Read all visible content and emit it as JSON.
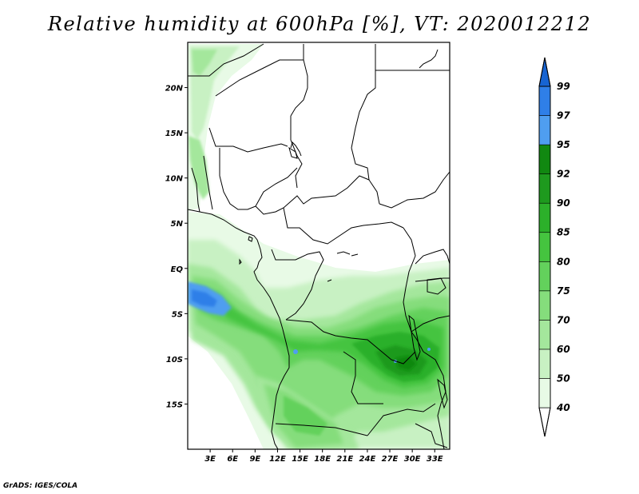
{
  "title": "Relative humidity at 600hPa [%], VT: 2020012212",
  "credit": "GrADS: IGES/COLA",
  "map": {
    "lon_range": [
      0,
      35
    ],
    "lat_range": [
      -20,
      25
    ],
    "lon_ticks": [
      {
        "value": 3,
        "label": "3E"
      },
      {
        "value": 6,
        "label": "6E"
      },
      {
        "value": 9,
        "label": "9E"
      },
      {
        "value": 12,
        "label": "12E"
      },
      {
        "value": 15,
        "label": "15E"
      },
      {
        "value": 18,
        "label": "18E"
      },
      {
        "value": 21,
        "label": "21E"
      },
      {
        "value": 24,
        "label": "24E"
      },
      {
        "value": 27,
        "label": "27E"
      },
      {
        "value": 30,
        "label": "30E"
      },
      {
        "value": 33,
        "label": "33E"
      }
    ],
    "lat_ticks": [
      {
        "value": 20,
        "label": "20N"
      },
      {
        "value": 15,
        "label": "15N"
      },
      {
        "value": 10,
        "label": "10N"
      },
      {
        "value": 5,
        "label": "5N"
      },
      {
        "value": 0,
        "label": "EQ"
      },
      {
        "value": -5,
        "label": "5S"
      },
      {
        "value": -10,
        "label": "10S"
      },
      {
        "value": -15,
        "label": "15S"
      }
    ]
  },
  "colorbar": {
    "levels": [
      "40",
      "50",
      "60",
      "70",
      "75",
      "80",
      "85",
      "90",
      "92",
      "95",
      "97",
      "99"
    ],
    "colors": [
      "#ffffff",
      "#e8fae6",
      "#c8f1c3",
      "#a4e79c",
      "#85dd7c",
      "#63d15c",
      "#45c43f",
      "#2cb02a",
      "#1e9a1e",
      "#118811",
      "#4f9ef0",
      "#2f7fe8",
      "#1764d2"
    ]
  }
}
